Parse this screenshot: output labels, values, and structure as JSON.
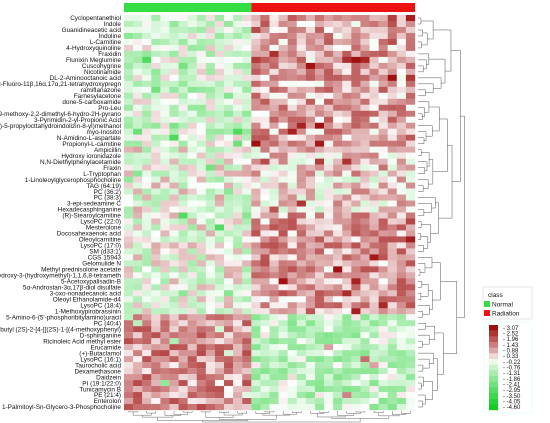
{
  "chart_data": {
    "type": "heatmap",
    "title": "",
    "xlabel": "",
    "ylabel": "",
    "n_columns": 32,
    "column_groups": [
      {
        "name": "Normal",
        "count": 14,
        "color": "#33dd44"
      },
      {
        "name": "Radiation",
        "count": 18,
        "color": "#ee1111"
      }
    ],
    "rows": [
      "Cyclopentanethiol",
      "Indole",
      "Guanidineacetic acid",
      "Indoline",
      "L-Carnitine",
      "4-Hydroxyquinoline",
      "Fraxidin",
      "Flunixin Meglumine",
      "Cuscohygrine",
      "Nicotinamide",
      "DL-2-Aminooctanoic acid",
      "9α-Fluoro-11β,16α,17α,21-tetrahydroxypregn",
      "ramiflanazone",
      "Farnesylacetone",
      "done-5-carboxamide",
      "Pro-Leu",
      "9-methoxy-2,2-dimethyl-6-hydro-2H-pyrano",
      "3-Pyrimidin-2-yl-Propionic Acid",
      "((5R,6R)-5-propylocttahydroindolizin-8-yl)methanol",
      "myo-Inositol",
      "N-Amidino-L-aspartate",
      "Propionyl-L-carnitine",
      "Ampicillin",
      "Hydroxy ioronidazole",
      "N,N-Diethylphenylacetamide",
      "Fraxin",
      "L-Tryptophan",
      "1-Linoleoylglycerophosphocholine",
      "TAG (64:19)",
      "PC (36:2)",
      "PC (38:3)",
      "3-epi-sedeamine C",
      "Hexadecasphinganine",
      "(R)-Stearoylcarnitine",
      "LysoPC (22:0)",
      "Mesterolone",
      "Docosahexaenoic acid",
      "Oleoylcarnitine",
      "LysoPC (17:0)",
      "SM (d33:1)",
      "CGS 15943",
      "Gelomulide N",
      "Methyl prednisolone acetate",
      "7b,9-Dihydroxy-3-(hydroxymethyl)-1,1,6,8-tetrameth",
      "5-Acetoxypalisadin-B",
      "5α-Androstan-3α,17β-diol disulfate",
      "3-oxo-nonadecanoic acid",
      "Oleoyl Ethanolamide-d4",
      "LysoPC (18:4)",
      "1-Methoxypirobrassinin",
      "5-Amino-6-(5'-phosphoribitylamino)uracil",
      "PC (40:4)",
      "tert-butyl (2S)-2-[4-[[(2S)-1-[(4-methoxyphenyl)",
      "D-sphinganine",
      "Ricinoleic Acid methyl ester",
      "Erucamide",
      "(+)-Butaclamol",
      "LysoPC (16:1)",
      "Taurocholic acid",
      "Dexamethasone",
      "Daidzein",
      "PI (19:1/22:0)",
      "Tunicamycin B",
      "PE (21:4)",
      "Enterolon",
      "1-Palmitoyl-Sn-Glycero-3-Phosphocholine"
    ],
    "color_scale": {
      "ticks": [
        "3.07",
        "2.52",
        "1.96",
        "1.43",
        "0.88",
        "0.33",
        "-0.22",
        "-0.76",
        "-1.31",
        "-1.86",
        "-2.41",
        "-2.95",
        "-3.50",
        "-4.05",
        "-4.60"
      ],
      "high_color": "#a01010",
      "mid_color": "#ffffff",
      "low_color": "#11cc22",
      "min": -4.6,
      "max": 3.07
    },
    "legend": {
      "title": "class",
      "entries": [
        {
          "name": "Normal",
          "color": "#33dd44"
        },
        {
          "name": "Radiation",
          "color": "#ee1111"
        }
      ],
      "placement": "right"
    },
    "row_dendrogram": "right",
    "column_dendrogram": "bottom"
  }
}
